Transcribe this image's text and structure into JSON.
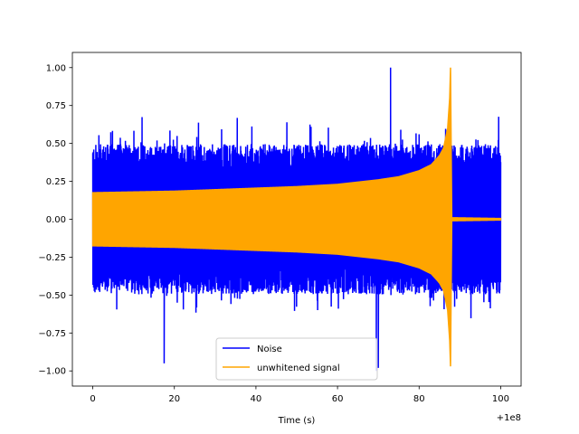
{
  "chart_data": {
    "type": "line",
    "title": "",
    "xlabel": "Time (s)",
    "ylabel": "",
    "x_offset_label": "+1e8",
    "xlim": [
      -5,
      105
    ],
    "ylim": [
      -1.1,
      1.1
    ],
    "xticks": [
      0,
      20,
      40,
      60,
      80,
      100
    ],
    "yticks": [
      -1.0,
      -0.75,
      -0.5,
      -0.25,
      0.0,
      0.25,
      0.5,
      0.75,
      1.0
    ],
    "xtick_labels": [
      "0",
      "20",
      "40",
      "60",
      "80",
      "100"
    ],
    "ytick_labels": [
      "−1.00",
      "−0.75",
      "−0.50",
      "−0.25",
      "0.00",
      "0.25",
      "0.50",
      "0.75",
      "1.00"
    ],
    "grid": false,
    "legend_position": "bottom-center",
    "series": [
      {
        "name": "Noise",
        "color": "#0000ff",
        "kind": "noise-band",
        "x_range": [
          0,
          100
        ],
        "typical_amplitude": 0.45,
        "peak_max": 1.0,
        "peak_min": -1.0
      },
      {
        "name": "unwhitened signal",
        "color": "#ffa500",
        "kind": "chirp-envelope",
        "envelope_x": [
          0,
          10,
          20,
          30,
          40,
          50,
          60,
          70,
          75,
          80,
          83,
          85,
          86,
          87,
          87.5,
          87.7,
          88,
          100
        ],
        "envelope_upper": [
          0.175,
          0.18,
          0.185,
          0.195,
          0.205,
          0.215,
          0.23,
          0.26,
          0.28,
          0.32,
          0.36,
          0.42,
          0.47,
          0.6,
          0.8,
          1.0,
          0.01,
          0.005
        ],
        "envelope_lower": [
          -0.175,
          -0.18,
          -0.185,
          -0.195,
          -0.205,
          -0.215,
          -0.23,
          -0.26,
          -0.28,
          -0.32,
          -0.36,
          -0.42,
          -0.47,
          -0.6,
          -0.8,
          -0.97,
          -0.01,
          -0.005
        ]
      }
    ]
  }
}
